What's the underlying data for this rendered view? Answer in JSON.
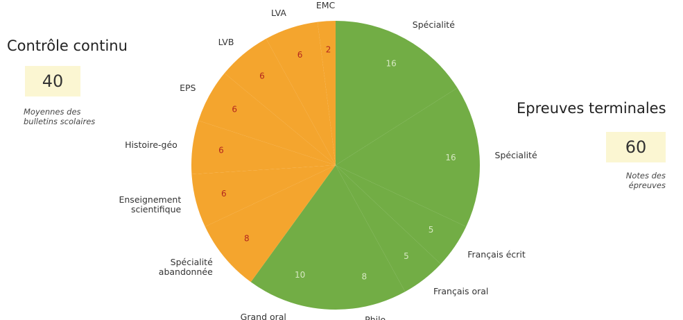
{
  "chart_data": {
    "type": "pie",
    "categories": [
      "Spécialité",
      "Spécialité",
      "Français écrit",
      "Français oral",
      "Philo",
      "Grand oral",
      "Spécialité abandonnée",
      "Enseignement scientifique",
      "Histoire-géo",
      "EPS",
      "LVB",
      "LVA",
      "EMC"
    ],
    "values": [
      16,
      16,
      5,
      5,
      8,
      10,
      8,
      6,
      6,
      6,
      6,
      6,
      2
    ],
    "colors": [
      "#72ad45",
      "#72ad45",
      "#72ad45",
      "#72ad45",
      "#72ad45",
      "#72ad45",
      "#f4a52e",
      "#f4a52e",
      "#f4a52e",
      "#f4a52e",
      "#f4a52e",
      "#f4a52e",
      "#f4a52e"
    ],
    "groups": [
      {
        "name": "Contrôle continu",
        "total": 40,
        "note": "Moyennes des bulletins scolaires"
      },
      {
        "name": "Epreuves terminales",
        "total": 60,
        "note": "Notes des épreuves"
      }
    ]
  }
}
